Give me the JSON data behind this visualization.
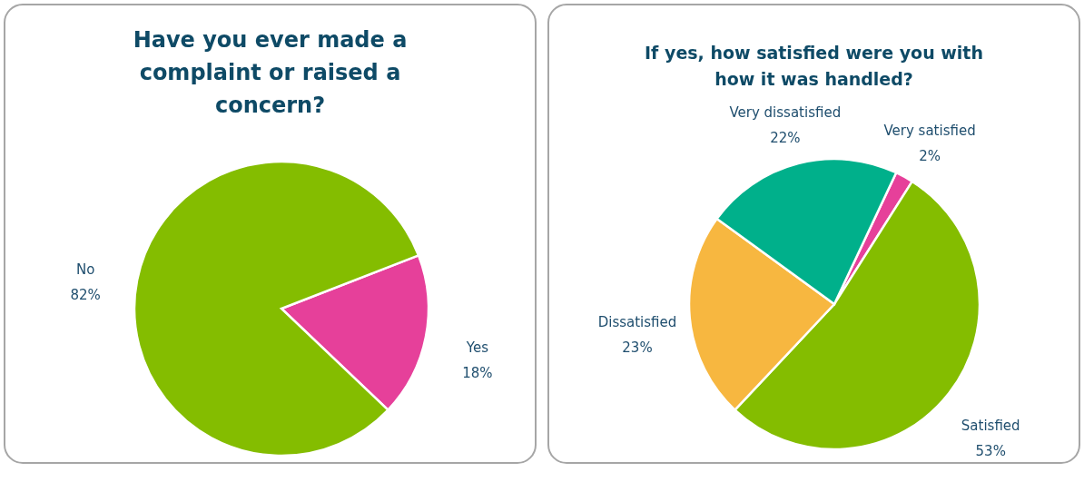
{
  "chart_data": [
    {
      "type": "pie",
      "title": "Have you ever made a complaint or raised a concern?",
      "categories": [
        "Yes",
        "No"
      ],
      "values": [
        18,
        82
      ],
      "value_labels": [
        "18%",
        "82%"
      ],
      "colors": [
        "#e6409a",
        "#84bd00"
      ]
    },
    {
      "type": "pie",
      "title": "If yes, how satisfied were you with how it was handled?",
      "categories": [
        "Very satisfied",
        "Satisfied",
        "Dissatisfied",
        "Very dissatisfied"
      ],
      "values": [
        2,
        53,
        23,
        22
      ],
      "value_labels": [
        "2%",
        "53%",
        "23%",
        "22%"
      ],
      "colors": [
        "#e6409a",
        "#84bd00",
        "#f7b740",
        "#00b08b"
      ]
    }
  ]
}
